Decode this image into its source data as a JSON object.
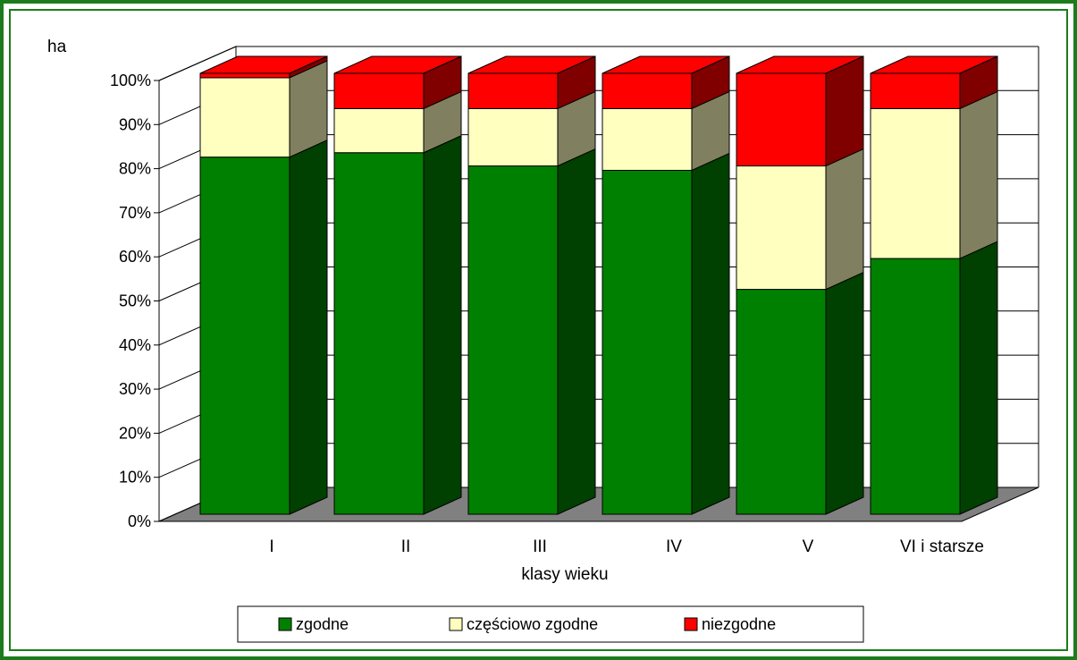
{
  "chart_data": {
    "type": "bar",
    "stacked": "percent",
    "three_d": true,
    "ylabel": "ha",
    "xlabel": "klasy wieku",
    "ylim": [
      0,
      100
    ],
    "yticks": [
      "0%",
      "10%",
      "20%",
      "30%",
      "40%",
      "50%",
      "60%",
      "70%",
      "80%",
      "90%",
      "100%"
    ],
    "grid": true,
    "legend_position": "bottom",
    "categories": [
      "I",
      "II",
      "III",
      "IV",
      "V",
      "VI i starsze"
    ],
    "series": [
      {
        "name": "zgodne",
        "color": "#008000",
        "values": [
          81,
          82,
          79,
          78,
          51,
          58
        ]
      },
      {
        "name": "częściowo zgodne",
        "color": "#ffffc0",
        "values": [
          18,
          10,
          13,
          14,
          28,
          34
        ]
      },
      {
        "name": "niezgodne",
        "color": "#ff0000",
        "values": [
          1,
          8,
          8,
          8,
          21,
          8
        ]
      }
    ]
  }
}
